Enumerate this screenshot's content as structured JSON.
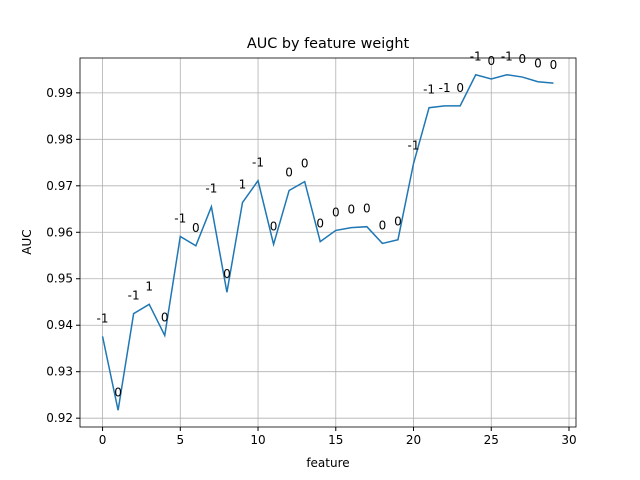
{
  "chart_data": {
    "type": "line",
    "title": "AUC by feature weight",
    "xlabel": "feature",
    "ylabel": "AUC",
    "x": [
      0,
      1,
      2,
      3,
      4,
      5,
      6,
      7,
      8,
      9,
      10,
      11,
      12,
      13,
      14,
      15,
      16,
      17,
      18,
      19,
      20,
      21,
      22,
      23,
      24,
      25,
      26,
      27,
      28,
      29
    ],
    "series": [
      {
        "name": "AUC",
        "color": "#1f77b4",
        "values": [
          0.9376,
          0.9217,
          0.9425,
          0.9445,
          0.9378,
          0.9591,
          0.9571,
          0.9655,
          0.9471,
          0.9664,
          0.9711,
          0.9574,
          0.969,
          0.9709,
          0.958,
          0.9604,
          0.961,
          0.9612,
          0.9576,
          0.9584,
          0.9748,
          0.9868,
          0.9872,
          0.9872,
          0.9939,
          0.993,
          0.9939,
          0.9934,
          0.9924,
          0.9921
        ]
      }
    ],
    "annotations": [
      "-1",
      "0",
      "-1",
      "1",
      "0",
      "-1",
      "0",
      "-1",
      "0",
      "1",
      "-1",
      "0",
      "0",
      "0",
      "0",
      "0",
      "0",
      "0",
      "0",
      "0",
      "-1",
      "-1",
      "-1",
      "0",
      "-1",
      "0",
      "-1",
      "0",
      "0",
      "0"
    ],
    "xlim": [
      -1.45,
      30.45
    ],
    "xticks": [
      0,
      5,
      10,
      15,
      20,
      25,
      30
    ],
    "ylim": [
      0.9181,
      0.9975
    ],
    "yticks": [
      0.92,
      0.93,
      0.94,
      0.95,
      0.96,
      0.97,
      0.98,
      0.99
    ],
    "grid": true
  }
}
